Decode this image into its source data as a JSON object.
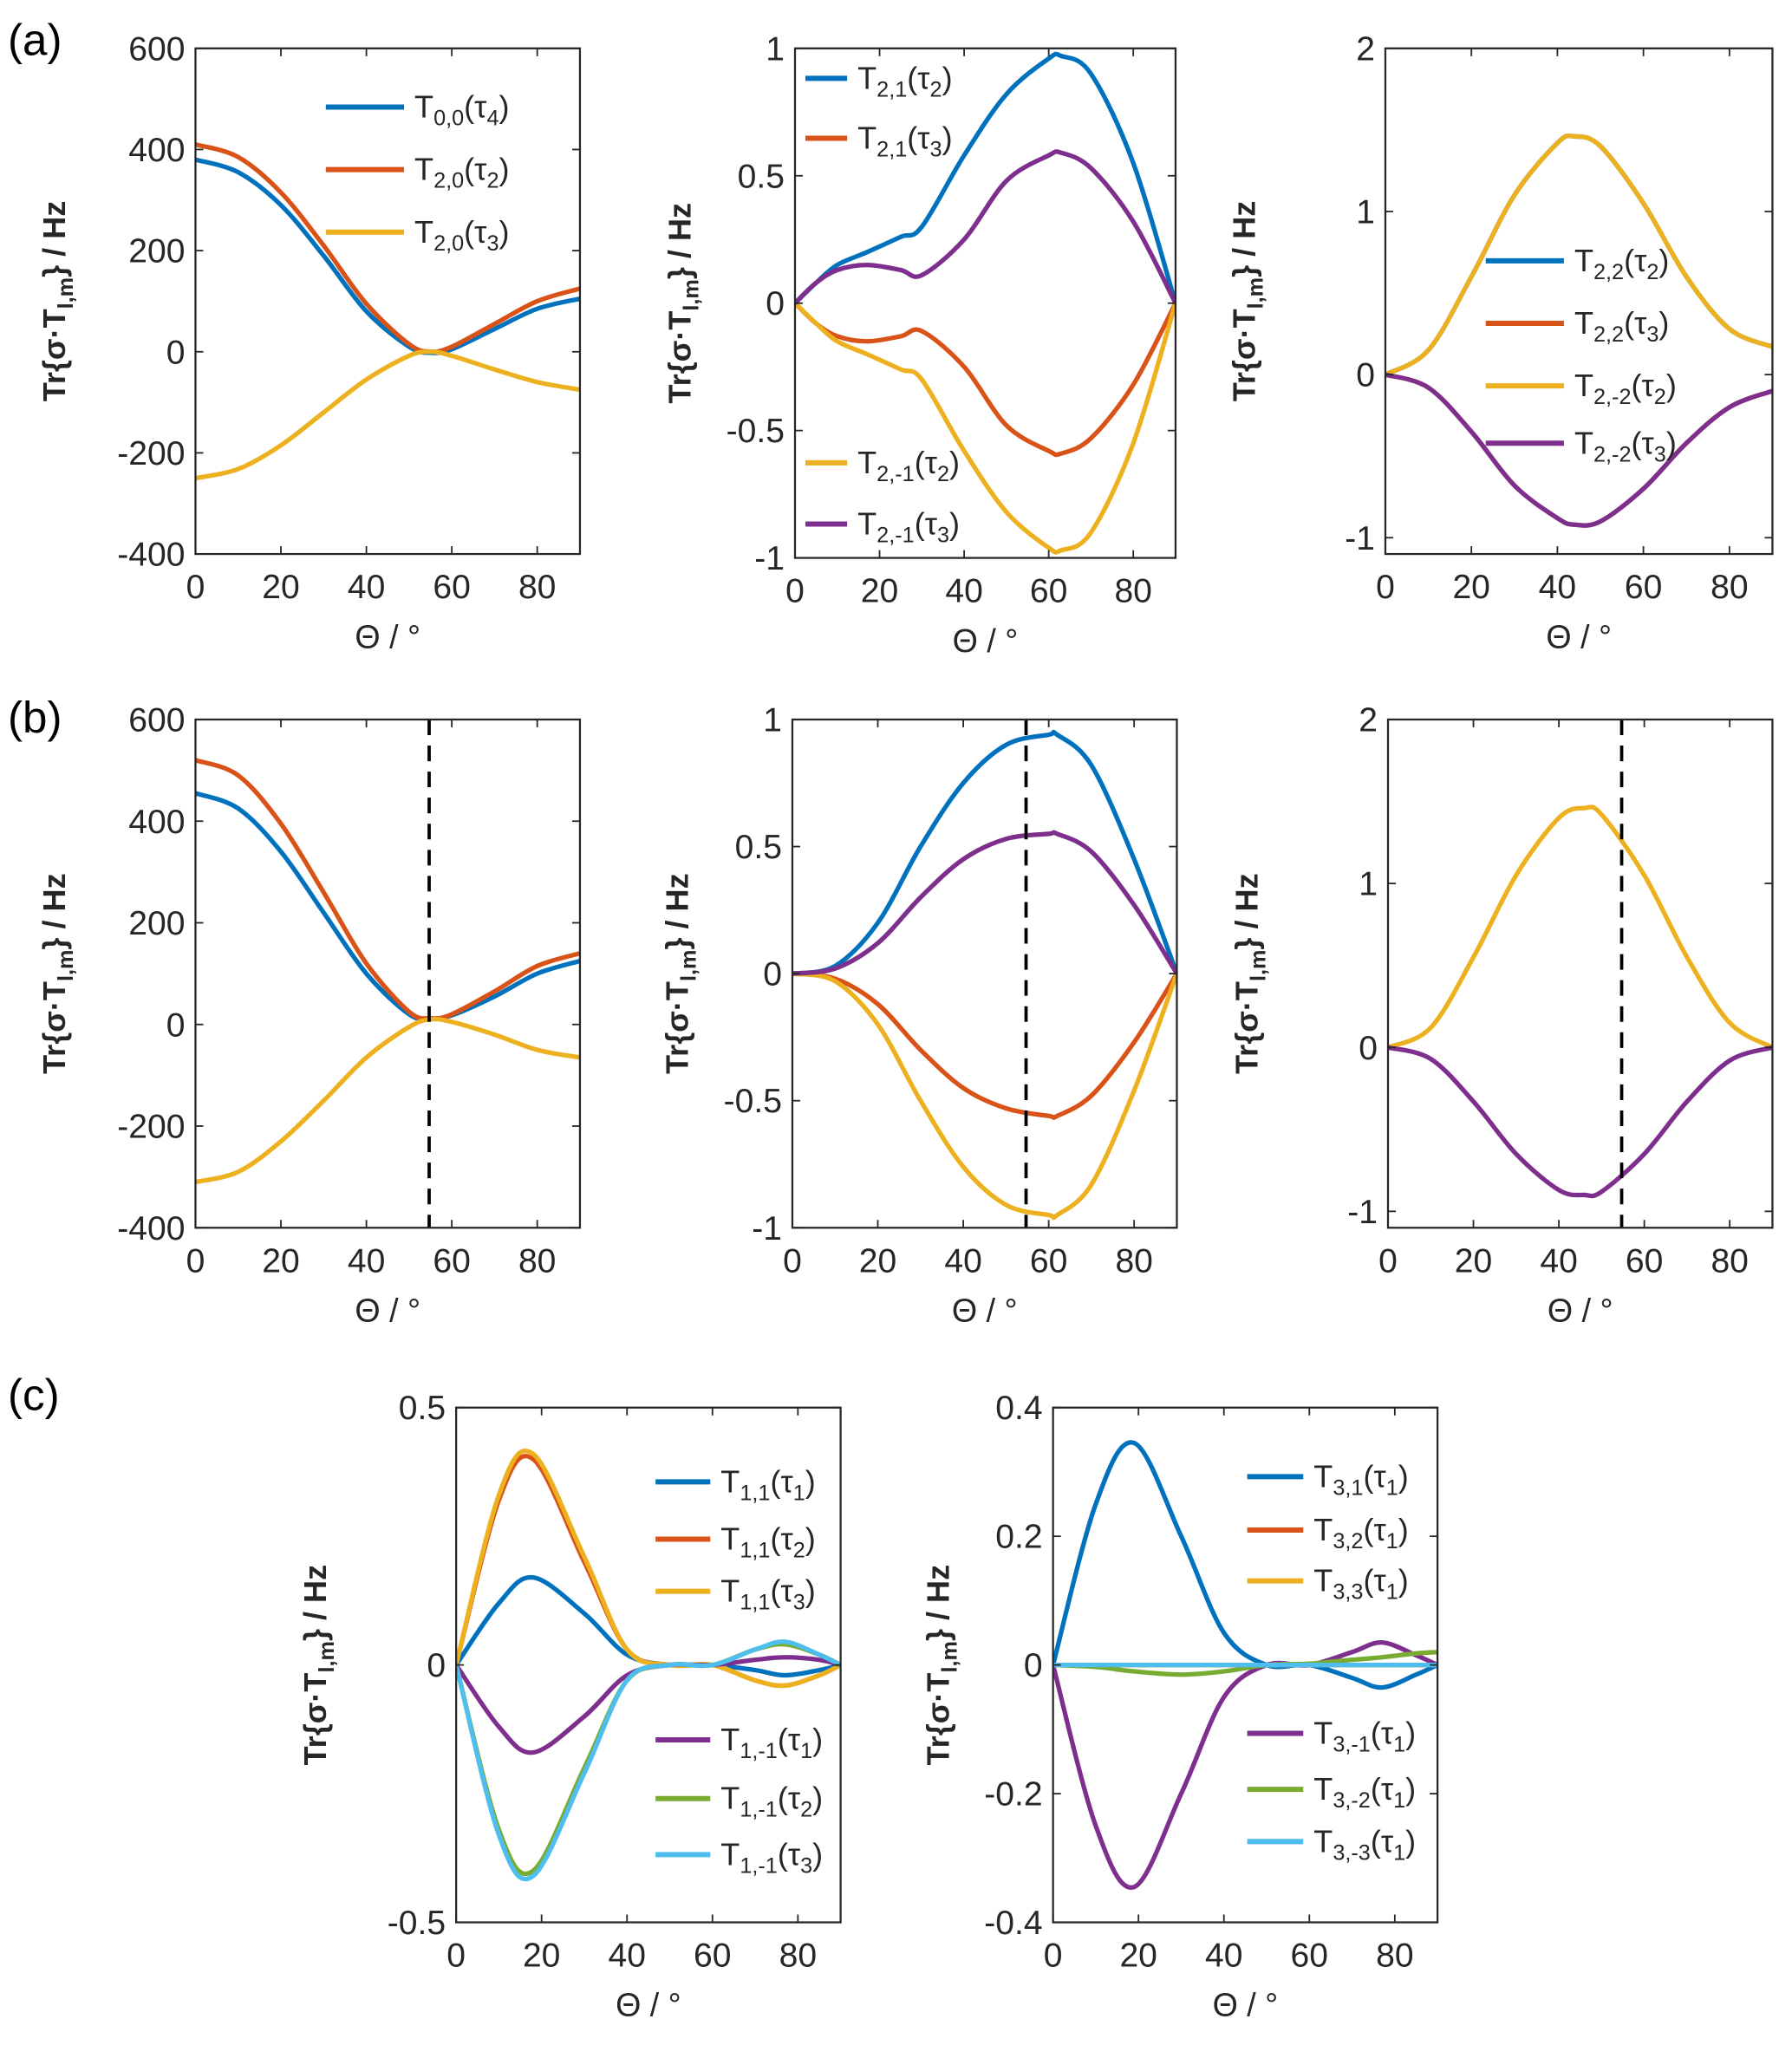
{
  "panel_labels": [
    "(a)",
    "(b)",
    "(c)"
  ],
  "colors": {
    "blue": "#0072BD",
    "red": "#D95319",
    "yellow": "#EDB120",
    "purple": "#7E2F8E",
    "green": "#77AC30",
    "cyan": "#4DBEEE",
    "axis": "#262626"
  },
  "chart_data": [
    {
      "id": "a1",
      "panel": "(a)",
      "type": "line",
      "xlim": [
        0,
        90
      ],
      "ylim": [
        -400,
        600
      ],
      "xticks": [
        0,
        20,
        40,
        60,
        80
      ],
      "yticks": [
        -400,
        -200,
        0,
        200,
        400,
        600
      ],
      "xlabel": "Θ / °",
      "ylabel_parts": [
        "Tr{σ·T",
        "l,m",
        "} / Hz"
      ],
      "grid": false,
      "legend": "top-right",
      "x": [
        0,
        10,
        20,
        30,
        40,
        50,
        55,
        60,
        70,
        80,
        90
      ],
      "series": [
        {
          "name_parts": [
            "T",
            "0,0",
            "(τ",
            "4",
            ")"
          ],
          "color": "#0072BD",
          "values": [
            380,
            355,
            290,
            190,
            80,
            10,
            -2,
            5,
            45,
            85,
            105
          ]
        },
        {
          "name_parts": [
            "T",
            "2,0",
            "(τ",
            "2",
            ")"
          ],
          "color": "#D95319",
          "values": [
            410,
            385,
            315,
            210,
            95,
            15,
            0,
            10,
            55,
            100,
            125
          ]
        },
        {
          "name_parts": [
            "T",
            "2,0",
            "(τ",
            "3",
            ")"
          ],
          "color": "#EDB120",
          "values": [
            -250,
            -232,
            -185,
            -120,
            -55,
            -8,
            0,
            -8,
            -35,
            -60,
            -75
          ]
        }
      ]
    },
    {
      "id": "a2",
      "panel": "(a)",
      "type": "line",
      "xlim": [
        0,
        90
      ],
      "ylim": [
        -1,
        1
      ],
      "xticks": [
        0,
        20,
        40,
        60,
        80
      ],
      "yticks": [
        -1,
        -0.5,
        0,
        0.5,
        1
      ],
      "xlabel": "Θ / °",
      "ylabel_parts": [
        "Tr{σ·T",
        "l,m",
        "} / Hz"
      ],
      "grid": false,
      "legend": "top-left and bottom-left",
      "x": [
        0,
        5,
        10,
        17,
        25,
        30,
        40,
        50,
        60,
        63,
        70,
        80,
        90
      ],
      "series": [
        {
          "name_parts": [
            "T",
            "2,1",
            "(τ",
            "2",
            ")"
          ],
          "color": "#0072BD",
          "values": [
            0,
            0.08,
            0.15,
            0.2,
            0.26,
            0.3,
            0.58,
            0.82,
            0.96,
            0.97,
            0.9,
            0.55,
            0
          ]
        },
        {
          "name_parts": [
            "T",
            "2,1",
            "(τ",
            "3",
            ")"
          ],
          "color": "#D95319",
          "values": [
            0,
            -0.08,
            -0.13,
            -0.15,
            -0.13,
            -0.11,
            -0.25,
            -0.48,
            -0.58,
            -0.59,
            -0.53,
            -0.32,
            0
          ]
        },
        {
          "name_parts": [
            "T",
            "2,-1",
            "(τ",
            "2",
            ")"
          ],
          "color": "#EDB120",
          "values": [
            0,
            -0.08,
            -0.15,
            -0.2,
            -0.26,
            -0.3,
            -0.58,
            -0.82,
            -0.96,
            -0.97,
            -0.9,
            -0.55,
            0
          ]
        },
        {
          "name_parts": [
            "T",
            "2,-1",
            "(τ",
            "3",
            ")"
          ],
          "color": "#7E2F8E",
          "values": [
            0,
            0.08,
            0.13,
            0.15,
            0.13,
            0.11,
            0.25,
            0.48,
            0.58,
            0.59,
            0.53,
            0.32,
            0
          ]
        }
      ]
    },
    {
      "id": "a3",
      "panel": "(a)",
      "type": "line",
      "xlim": [
        0,
        90
      ],
      "ylim": [
        -1.1,
        2
      ],
      "xticks": [
        0,
        20,
        40,
        60,
        80
      ],
      "yticks": [
        -1,
        0,
        1,
        2
      ],
      "xlabel": "Θ / °",
      "ylabel_parts": [
        "Tr{σ·T",
        "l,m",
        "} / Hz"
      ],
      "grid": false,
      "legend": "center-right",
      "x": [
        0,
        10,
        20,
        30,
        40,
        44,
        50,
        60,
        70,
        80,
        90
      ],
      "series": [
        {
          "name_parts": [
            "T",
            "2,2",
            "(τ",
            "2",
            ")"
          ],
          "color": "#0072BD",
          "values": [
            0,
            0.15,
            0.6,
            1.1,
            1.42,
            1.46,
            1.4,
            1.05,
            0.6,
            0.28,
            0.17
          ]
        },
        {
          "name_parts": [
            "T",
            "2,2",
            "(τ",
            "3",
            ")"
          ],
          "color": "#D95319",
          "values": [
            0,
            -0.08,
            -0.35,
            -0.68,
            -0.88,
            -0.92,
            -0.9,
            -0.7,
            -0.42,
            -0.2,
            -0.1
          ]
        },
        {
          "name_parts": [
            "T",
            "2,-2",
            "(τ",
            "2",
            ")"
          ],
          "color": "#EDB120",
          "values": [
            0,
            0.15,
            0.6,
            1.1,
            1.42,
            1.46,
            1.4,
            1.05,
            0.6,
            0.28,
            0.17
          ]
        },
        {
          "name_parts": [
            "T",
            "2,-2",
            "(τ",
            "3",
            ")"
          ],
          "color": "#7E2F8E",
          "values": [
            0,
            -0.08,
            -0.35,
            -0.68,
            -0.88,
            -0.92,
            -0.9,
            -0.7,
            -0.42,
            -0.2,
            -0.1
          ]
        }
      ]
    },
    {
      "id": "b1",
      "panel": "(b)",
      "type": "line",
      "xlim": [
        0,
        90
      ],
      "ylim": [
        -400,
        600
      ],
      "xticks": [
        0,
        20,
        40,
        60,
        80
      ],
      "yticks": [
        -400,
        -200,
        0,
        200,
        400,
        600
      ],
      "xlabel": "Θ / °",
      "ylabel_parts": [
        "Tr{σ·T",
        "l,m",
        "} / Hz"
      ],
      "grid": false,
      "vline": 54.7,
      "x": [
        0,
        10,
        20,
        30,
        40,
        50,
        55,
        60,
        70,
        80,
        90
      ],
      "series": [
        {
          "color": "#0072BD",
          "values": [
            455,
            425,
            340,
            220,
            100,
            20,
            12,
            18,
            55,
            100,
            125
          ]
        },
        {
          "color": "#D95319",
          "values": [
            520,
            490,
            395,
            260,
            120,
            25,
            12,
            20,
            65,
            115,
            140
          ]
        },
        {
          "color": "#EDB120",
          "values": [
            -310,
            -290,
            -230,
            -150,
            -65,
            -5,
            10,
            5,
            -20,
            -50,
            -65
          ]
        }
      ]
    },
    {
      "id": "b2",
      "panel": "(b)",
      "type": "line",
      "xlim": [
        0,
        90
      ],
      "ylim": [
        -1,
        1
      ],
      "xticks": [
        0,
        20,
        40,
        60,
        80
      ],
      "yticks": [
        -1,
        -0.5,
        0,
        0.5,
        1
      ],
      "xlabel": "Θ / °",
      "ylabel_parts": [
        "Tr{σ·T",
        "l,m",
        "} / Hz"
      ],
      "grid": false,
      "vline": 54.7,
      "x": [
        0,
        10,
        20,
        30,
        40,
        50,
        60,
        62,
        70,
        80,
        90
      ],
      "series": [
        {
          "color": "#0072BD",
          "values": [
            0,
            0.03,
            0.2,
            0.5,
            0.75,
            0.9,
            0.94,
            0.94,
            0.82,
            0.45,
            0
          ]
        },
        {
          "color": "#D95319",
          "values": [
            0,
            -0.02,
            -0.12,
            -0.3,
            -0.45,
            -0.53,
            -0.56,
            -0.56,
            -0.48,
            -0.27,
            0
          ]
        },
        {
          "color": "#EDB120",
          "values": [
            0,
            -0.03,
            -0.2,
            -0.5,
            -0.76,
            -0.91,
            -0.95,
            -0.95,
            -0.83,
            -0.46,
            0
          ]
        },
        {
          "color": "#7E2F8E",
          "values": [
            0,
            0.02,
            0.12,
            0.3,
            0.45,
            0.53,
            0.55,
            0.55,
            0.48,
            0.27,
            0
          ]
        }
      ]
    },
    {
      "id": "b3",
      "panel": "(b)",
      "type": "line",
      "xlim": [
        0,
        90
      ],
      "ylim": [
        -1.1,
        2
      ],
      "xticks": [
        0,
        20,
        40,
        60,
        80
      ],
      "yticks": [
        -1,
        0,
        1,
        2
      ],
      "xlabel": "Θ / °",
      "ylabel_parts": [
        "Tr{σ·T",
        "l,m",
        "} / Hz"
      ],
      "grid": false,
      "vline": 54.7,
      "x": [
        0,
        10,
        20,
        30,
        40,
        46,
        50,
        60,
        70,
        80,
        90
      ],
      "series": [
        {
          "color": "#EDB120",
          "values": [
            0,
            0.12,
            0.55,
            1.05,
            1.4,
            1.46,
            1.42,
            1.05,
            0.55,
            0.15,
            0
          ]
        },
        {
          "color": "#7E2F8E",
          "values": [
            0,
            -0.07,
            -0.33,
            -0.65,
            -0.87,
            -0.9,
            -0.88,
            -0.65,
            -0.33,
            -0.08,
            0
          ]
        }
      ]
    },
    {
      "id": "c1",
      "panel": "(c)",
      "type": "line",
      "xlim": [
        0,
        90
      ],
      "ylim": [
        -0.5,
        0.5
      ],
      "xticks": [
        0,
        20,
        40,
        60,
        80
      ],
      "yticks": [
        -0.5,
        0,
        0.5
      ],
      "xlabel": "Θ / °",
      "ylabel_parts": [
        "Tr{σ·T",
        "l,m",
        "} / Hz"
      ],
      "grid": false,
      "legend": "right",
      "x": [
        0,
        10,
        18,
        30,
        40,
        50,
        60,
        70,
        77,
        85,
        90
      ],
      "series": [
        {
          "name_parts": [
            "T",
            "1,1",
            "(τ",
            "1",
            ")"
          ],
          "color": "#0072BD",
          "values": [
            0,
            0.12,
            0.17,
            0.1,
            0.02,
            0,
            0,
            -0.01,
            -0.02,
            -0.01,
            0
          ]
        },
        {
          "name_parts": [
            "T",
            "1,1",
            "(τ",
            "2",
            ")"
          ],
          "color": "#D95319",
          "values": [
            0,
            0.32,
            0.4,
            0.2,
            0.03,
            0,
            0,
            -0.03,
            -0.04,
            -0.02,
            0
          ]
        },
        {
          "name_parts": [
            "T",
            "1,1",
            "(τ",
            "3",
            ")"
          ],
          "color": "#EDB120",
          "values": [
            0,
            0.33,
            0.41,
            0.21,
            0.03,
            0,
            0,
            -0.03,
            -0.04,
            -0.02,
            0
          ]
        },
        {
          "name_parts": [
            "T",
            "1,-1",
            "(τ",
            "1",
            ")"
          ],
          "color": "#7E2F8E",
          "values": [
            0,
            -0.12,
            -0.17,
            -0.1,
            -0.02,
            0,
            0,
            0.01,
            0.015,
            0.01,
            0
          ]
        },
        {
          "name_parts": [
            "T",
            "1,-1",
            "(τ",
            "2",
            ")"
          ],
          "color": "#77AC30",
          "values": [
            0,
            -0.32,
            -0.4,
            -0.2,
            -0.03,
            0,
            0,
            0.03,
            0.04,
            0.02,
            0
          ]
        },
        {
          "name_parts": [
            "T",
            "1,-1",
            "(τ",
            "3",
            ")"
          ],
          "color": "#4DBEEE",
          "values": [
            0,
            -0.33,
            -0.41,
            -0.21,
            -0.03,
            0,
            0,
            0.03,
            0.045,
            0.02,
            0
          ]
        }
      ]
    },
    {
      "id": "c2",
      "panel": "(c)",
      "type": "line",
      "xlim": [
        0,
        90
      ],
      "ylim": [
        -0.4,
        0.4
      ],
      "xticks": [
        0,
        20,
        40,
        60,
        80
      ],
      "yticks": [
        -0.4,
        -0.2,
        0,
        0.2,
        0.4
      ],
      "xlabel": "Θ / °",
      "ylabel_parts": [
        "Tr{σ·T",
        "l,m",
        "} / Hz"
      ],
      "grid": false,
      "legend": "right",
      "x": [
        0,
        10,
        19,
        30,
        40,
        50,
        60,
        70,
        77,
        85,
        90
      ],
      "series": [
        {
          "name_parts": [
            "T",
            "3,1",
            "(τ",
            "1",
            ")"
          ],
          "color": "#0072BD",
          "values": [
            0,
            0.25,
            0.345,
            0.2,
            0.05,
            0,
            0,
            -0.02,
            -0.035,
            -0.015,
            0
          ]
        },
        {
          "name_parts": [
            "T",
            "3,2",
            "(τ",
            "1",
            ")"
          ],
          "color": "#D95319",
          "values": [
            0,
            0,
            0,
            0,
            0,
            0,
            0,
            0,
            0,
            0,
            0
          ]
        },
        {
          "name_parts": [
            "T",
            "3,3",
            "(τ",
            "1",
            ")"
          ],
          "color": "#EDB120",
          "values": [
            0,
            0,
            0,
            0,
            0,
            0,
            0,
            0,
            0,
            0,
            0
          ]
        },
        {
          "name_parts": [
            "T",
            "3,-1",
            "(τ",
            "1",
            ")"
          ],
          "color": "#7E2F8E",
          "values": [
            0,
            -0.25,
            -0.345,
            -0.2,
            -0.05,
            0,
            0,
            0.02,
            0.035,
            0.015,
            0
          ]
        },
        {
          "name_parts": [
            "T",
            "3,-2",
            "(τ",
            "1",
            ")"
          ],
          "color": "#77AC30",
          "values": [
            0,
            -0.003,
            -0.01,
            -0.015,
            -0.01,
            0,
            0.002,
            0.008,
            0.012,
            0.018,
            0.02
          ]
        },
        {
          "name_parts": [
            "T",
            "3,-3",
            "(τ",
            "1",
            ")"
          ],
          "color": "#4DBEEE",
          "values": [
            0,
            0,
            0,
            0,
            0,
            0,
            0,
            0,
            0,
            0,
            0
          ]
        }
      ]
    }
  ]
}
